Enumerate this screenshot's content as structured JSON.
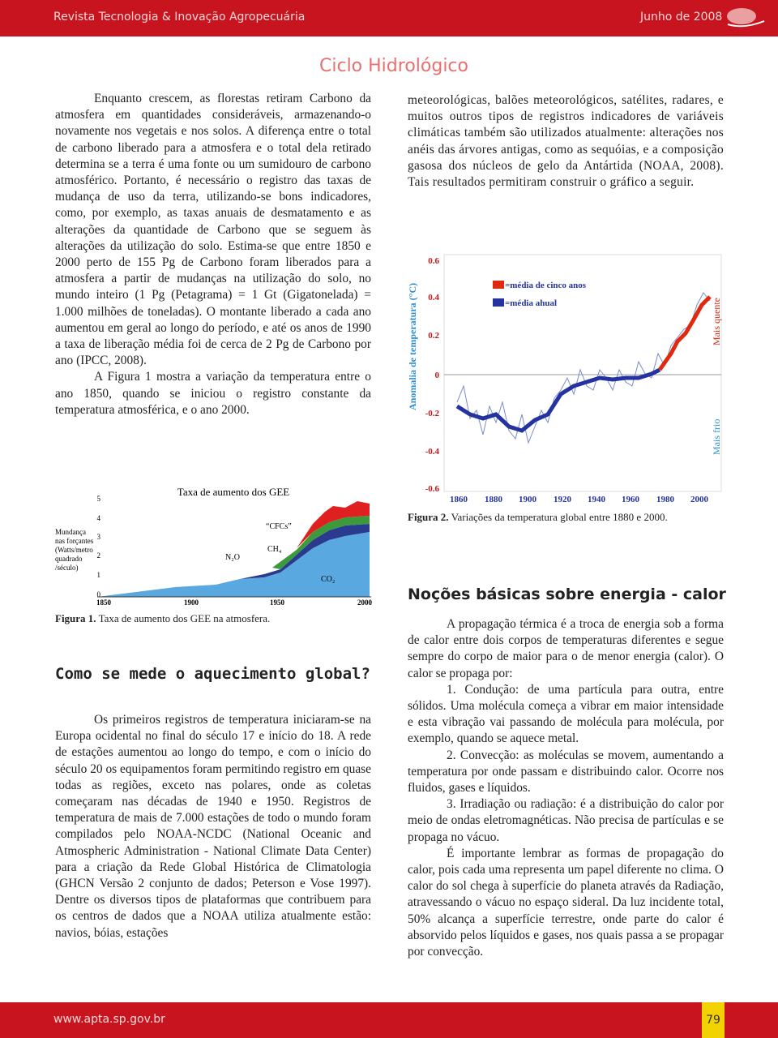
{
  "header": {
    "journal": "Revista Tecnologia & Inovação Agropecuária",
    "date": "Junho de 2008"
  },
  "section_title": "Ciclo Hidrológico",
  "left": {
    "paragraphs": [
      "Enquanto crescem, as florestas retiram Carbono da atmosfera em quantidades consideráveis, armazenando-o novamente nos vegetais e nos solos. A diferença entre o total de carbono liberado para a atmosfera e o total dela retirado determina se a terra é uma fonte ou um sumidouro de carbono atmosférico. Portanto, é necessário o registro das taxas de mudança de uso da terra, utilizando-se bons indicadores, como, por exemplo, as taxas anuais de desmatamento e as alterações da quantidade de Carbono que se seguem às alterações da utilização do solo. Estima-se que entre 1850 e 2000 perto de 155 Pg de Carbono foram liberados para a atmosfera a partir de mudanças na utilização do solo, no mundo inteiro (1 Pg (Petagrama) = 1 Gt (Gigatonelada) = 1.000 milhões de toneladas). O montante liberado a cada ano aumentou em geral ao longo do período, e até os anos de 1990 a taxa de liberação média foi de cerca de 2 Pg de Carbono por ano (IPCC, 2008).",
      "A Figura 1 mostra a variação da temperatura entre o ano 1850, quando se iniciou o registro constante da temperatura atmosférica, e o ano 2000."
    ]
  },
  "figure1": {
    "title": "Taxa de aumento dos GEE",
    "ylabel": [
      "Mundança",
      "nas forçantes",
      "(Watts/metro",
      "quadrado",
      "/século)"
    ],
    "yticks": [
      "5",
      "4",
      "3",
      "2",
      "1",
      "0"
    ],
    "xticks": [
      "1850",
      "1900",
      "1950",
      "2000"
    ],
    "labels": [
      "N₂O",
      "“CFCs”",
      "CH₄",
      "CO₂"
    ],
    "caption_label": "Figura 1.",
    "caption": "Taxa de aumento dos GEE na atmosfera."
  },
  "heading_measure": "Como se mede o aquecimento global?",
  "measure": {
    "paragraphs": [
      "Os primeiros registros de temperatura iniciaram-se na Europa ocidental no final do século 17 e início do 18. A rede de estações aumentou ao longo do tempo, e com o início do século 20 os equipamentos foram permitindo registro em quase todas as regiões, exceto nas polares, onde as coletas começaram nas décadas de 1940 e 1950. Registros de temperatura de mais de 7.000 estações de todo o mundo foram compilados pelo NOAA-NCDC (National Oceanic and Atmospheric Administration - National Climate Data Center) para a criação da Rede Global Histórica de Climatologia (GHCN Versão 2 conjunto de dados; Peterson e Vose 1997). Dentre os diversos tipos de plataformas que contribuem para os centros de dados que a NOAA utiliza atualmente estão: navios, bóias, estações"
    ]
  },
  "right": {
    "paragraphs": [
      "meteorológicas, balões meteorológicos, satélites, radares, e muitos outros tipos de registros indicadores de variáveis climáticas também são utilizados atualmente: alterações nos anéis das árvores antigas, como as sequóias, e a composição gasosa dos núcleos de gelo da Antártida (NOAA, 2008). Tais resultados permitiram construir o gráfico a seguir."
    ]
  },
  "figure2": {
    "ylabel": "Anomalia de temperatura (°C)",
    "yticks": [
      "0.6",
      "0.4",
      "0.2",
      "0",
      "-0.2",
      "-0.4",
      "-0.6"
    ],
    "xticks": [
      "1860",
      "1880",
      "1900",
      "1920",
      "1940",
      "1960",
      "1980",
      "2000"
    ],
    "legend": [
      "=média de cinco anos",
      "=média ahual"
    ],
    "warm": "Mais quente",
    "cold": "Mais frio",
    "caption_label": "Figura 2.",
    "caption": "Variações da temperatura global entre 1880 e 2000."
  },
  "heading_energy": "Noções básicas sobre energia - calor",
  "energy": {
    "paragraphs": [
      "A propagação térmica é a troca de energia sob a forma de calor entre dois corpos de temperaturas diferentes e segue sempre do corpo de maior para o de menor energia (calor). O calor se propaga por:",
      "1. Condução: de uma partícula para outra, entre sólidos. Uma molécula começa a vibrar em maior intensidade e esta vibração vai passando de molécula para molécula, por exemplo, quando se aquece metal.",
      "2. Convecção: as moléculas se movem, aumentando a temperatura por onde passam e distribuindo calor. Ocorre nos fluidos, gases e líquidos.",
      "3. Irradiação ou radiação: é a distribuição do calor por meio de ondas eletromagnéticas. Não precisa de partículas e se propaga no vácuo.",
      "É importante lembrar as formas de propagação do calor, pois cada uma representa um papel diferente no clima. O calor do sol chega à superfície do planeta através da Radiação, atravessando o vácuo no espaço sideral. Da luz incidente total, 50% alcança a superfície terrestre, onde parte do calor é absorvido pelos líquidos e gases, nos quais passa a se propagar por convecção."
    ]
  },
  "footer": {
    "url": "www.apta.sp.gov.br",
    "page": "79"
  }
}
